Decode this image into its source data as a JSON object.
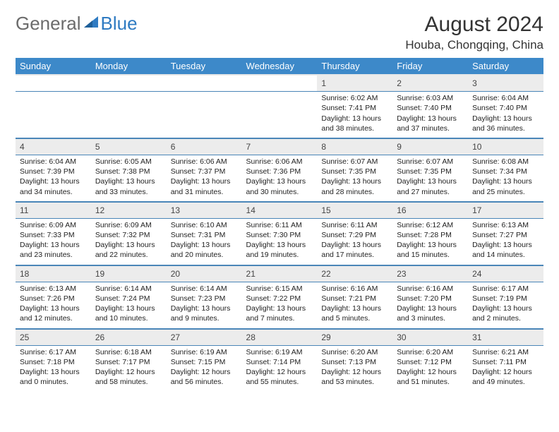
{
  "logo": {
    "general": "General",
    "blue": "Blue"
  },
  "title": "August 2024",
  "location": "Houba, Chongqing, China",
  "colors": {
    "header_bg": "#3d89c9",
    "header_text": "#ffffff",
    "daynum_bg": "#ececec",
    "row_sep": "#4a86b8",
    "logo_gray": "#6b6b6b",
    "logo_blue": "#2f7bc2",
    "page_bg": "#ffffff"
  },
  "typography": {
    "title_fontsize": 30,
    "location_fontsize": 17,
    "dayhead_fontsize": 13,
    "daynum_fontsize": 12,
    "cell_fontsize": 10.5
  },
  "day_headers": [
    "Sunday",
    "Monday",
    "Tuesday",
    "Wednesday",
    "Thursday",
    "Friday",
    "Saturday"
  ],
  "weeks": [
    {
      "nums": [
        "",
        "",
        "",
        "",
        "1",
        "2",
        "3"
      ],
      "cells": [
        null,
        null,
        null,
        null,
        {
          "sunrise": "6:02 AM",
          "sunset": "7:41 PM",
          "daylight": "13 hours and 38 minutes."
        },
        {
          "sunrise": "6:03 AM",
          "sunset": "7:40 PM",
          "daylight": "13 hours and 37 minutes."
        },
        {
          "sunrise": "6:04 AM",
          "sunset": "7:40 PM",
          "daylight": "13 hours and 36 minutes."
        }
      ]
    },
    {
      "nums": [
        "4",
        "5",
        "6",
        "7",
        "8",
        "9",
        "10"
      ],
      "cells": [
        {
          "sunrise": "6:04 AM",
          "sunset": "7:39 PM",
          "daylight": "13 hours and 34 minutes."
        },
        {
          "sunrise": "6:05 AM",
          "sunset": "7:38 PM",
          "daylight": "13 hours and 33 minutes."
        },
        {
          "sunrise": "6:06 AM",
          "sunset": "7:37 PM",
          "daylight": "13 hours and 31 minutes."
        },
        {
          "sunrise": "6:06 AM",
          "sunset": "7:36 PM",
          "daylight": "13 hours and 30 minutes."
        },
        {
          "sunrise": "6:07 AM",
          "sunset": "7:35 PM",
          "daylight": "13 hours and 28 minutes."
        },
        {
          "sunrise": "6:07 AM",
          "sunset": "7:35 PM",
          "daylight": "13 hours and 27 minutes."
        },
        {
          "sunrise": "6:08 AM",
          "sunset": "7:34 PM",
          "daylight": "13 hours and 25 minutes."
        }
      ]
    },
    {
      "nums": [
        "11",
        "12",
        "13",
        "14",
        "15",
        "16",
        "17"
      ],
      "cells": [
        {
          "sunrise": "6:09 AM",
          "sunset": "7:33 PM",
          "daylight": "13 hours and 23 minutes."
        },
        {
          "sunrise": "6:09 AM",
          "sunset": "7:32 PM",
          "daylight": "13 hours and 22 minutes."
        },
        {
          "sunrise": "6:10 AM",
          "sunset": "7:31 PM",
          "daylight": "13 hours and 20 minutes."
        },
        {
          "sunrise": "6:11 AM",
          "sunset": "7:30 PM",
          "daylight": "13 hours and 19 minutes."
        },
        {
          "sunrise": "6:11 AM",
          "sunset": "7:29 PM",
          "daylight": "13 hours and 17 minutes."
        },
        {
          "sunrise": "6:12 AM",
          "sunset": "7:28 PM",
          "daylight": "13 hours and 15 minutes."
        },
        {
          "sunrise": "6:13 AM",
          "sunset": "7:27 PM",
          "daylight": "13 hours and 14 minutes."
        }
      ]
    },
    {
      "nums": [
        "18",
        "19",
        "20",
        "21",
        "22",
        "23",
        "24"
      ],
      "cells": [
        {
          "sunrise": "6:13 AM",
          "sunset": "7:26 PM",
          "daylight": "13 hours and 12 minutes."
        },
        {
          "sunrise": "6:14 AM",
          "sunset": "7:24 PM",
          "daylight": "13 hours and 10 minutes."
        },
        {
          "sunrise": "6:14 AM",
          "sunset": "7:23 PM",
          "daylight": "13 hours and 9 minutes."
        },
        {
          "sunrise": "6:15 AM",
          "sunset": "7:22 PM",
          "daylight": "13 hours and 7 minutes."
        },
        {
          "sunrise": "6:16 AM",
          "sunset": "7:21 PM",
          "daylight": "13 hours and 5 minutes."
        },
        {
          "sunrise": "6:16 AM",
          "sunset": "7:20 PM",
          "daylight": "13 hours and 3 minutes."
        },
        {
          "sunrise": "6:17 AM",
          "sunset": "7:19 PM",
          "daylight": "13 hours and 2 minutes."
        }
      ]
    },
    {
      "nums": [
        "25",
        "26",
        "27",
        "28",
        "29",
        "30",
        "31"
      ],
      "cells": [
        {
          "sunrise": "6:17 AM",
          "sunset": "7:18 PM",
          "daylight": "13 hours and 0 minutes."
        },
        {
          "sunrise": "6:18 AM",
          "sunset": "7:17 PM",
          "daylight": "12 hours and 58 minutes."
        },
        {
          "sunrise": "6:19 AM",
          "sunset": "7:15 PM",
          "daylight": "12 hours and 56 minutes."
        },
        {
          "sunrise": "6:19 AM",
          "sunset": "7:14 PM",
          "daylight": "12 hours and 55 minutes."
        },
        {
          "sunrise": "6:20 AM",
          "sunset": "7:13 PM",
          "daylight": "12 hours and 53 minutes."
        },
        {
          "sunrise": "6:20 AM",
          "sunset": "7:12 PM",
          "daylight": "12 hours and 51 minutes."
        },
        {
          "sunrise": "6:21 AM",
          "sunset": "7:11 PM",
          "daylight": "12 hours and 49 minutes."
        }
      ]
    }
  ],
  "labels": {
    "sunrise": "Sunrise: ",
    "sunset": "Sunset: ",
    "daylight": "Daylight: "
  }
}
